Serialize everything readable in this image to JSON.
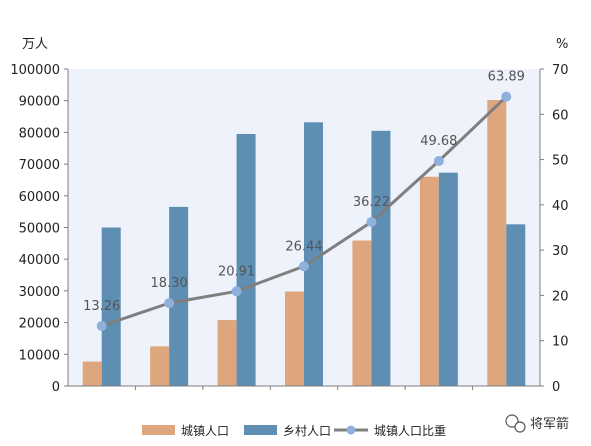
{
  "chart_data": {
    "type": "bar",
    "categories": [
      "",
      "",
      "",
      "",
      "",
      "",
      ""
    ],
    "series": [
      {
        "name": "城镇人口",
        "kind": "bar",
        "axis": "left",
        "color": "#dea67c",
        "values": [
          7700,
          12500,
          20800,
          29800,
          45900,
          66000,
          90200
        ]
      },
      {
        "name": "乡村人口",
        "kind": "bar",
        "axis": "left",
        "color": "#5f8eb3",
        "values": [
          50000,
          56500,
          79500,
          83200,
          80500,
          67300,
          51000
        ]
      },
      {
        "name": "城镇人口比重",
        "kind": "line",
        "axis": "right",
        "color": "#7f7f7f",
        "marker_color": "#8fb0dc",
        "values": [
          13.26,
          18.3,
          20.91,
          26.44,
          36.22,
          49.68,
          63.89
        ],
        "labels": [
          "13.26",
          "18.30",
          "20.91",
          "26.44",
          "36.22",
          "49.68",
          "63.89"
        ]
      }
    ],
    "y_left": {
      "unit": "万人",
      "ylim": [
        0,
        100000
      ],
      "ticks": [
        "0",
        "10000",
        "20000",
        "30000",
        "40000",
        "50000",
        "60000",
        "70000",
        "80000",
        "90000",
        "100000"
      ]
    },
    "y_right": {
      "unit": "%",
      "ylim": [
        0,
        70
      ],
      "ticks": [
        "0",
        "10",
        "20",
        "30",
        "40",
        "50",
        "60",
        "70"
      ]
    },
    "plot_background": "#eef2fb",
    "grid": false,
    "legend_position": "bottom"
  },
  "watermark": {
    "text": "将军箭"
  }
}
